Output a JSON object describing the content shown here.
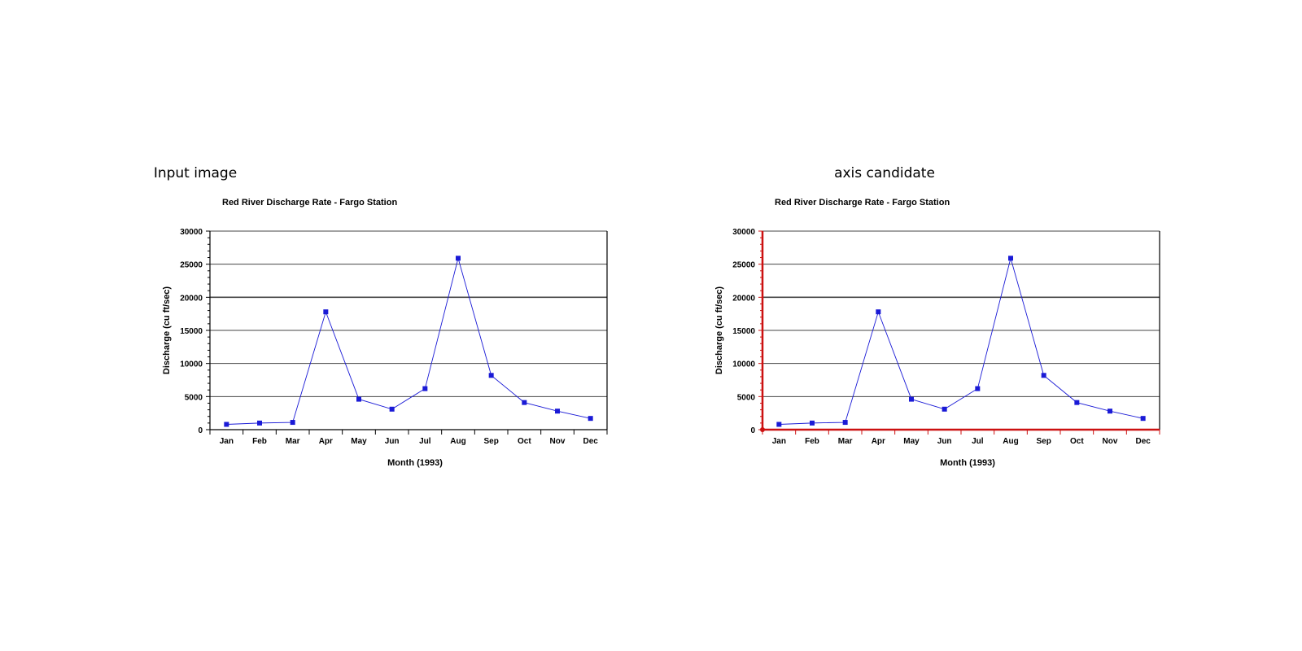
{
  "panels": {
    "left_heading": "Input image",
    "right_heading": "axis candidate"
  },
  "colors": {
    "series": "#1a1ad6",
    "grid": "#444444",
    "axis_highlight": "#cc1111"
  },
  "chart_data": [
    {
      "type": "line",
      "title": "Red River Discharge Rate - Fargo Station",
      "xlabel": "Month (1993)",
      "ylabel": "Discharge (cu ft/sec)",
      "categories": [
        "Jan",
        "Feb",
        "Mar",
        "Apr",
        "May",
        "Jun",
        "Jul",
        "Aug",
        "Sep",
        "Oct",
        "Nov",
        "Dec"
      ],
      "values": [
        800,
        1000,
        1100,
        17800,
        4600,
        3100,
        6200,
        25900,
        8200,
        4100,
        2800,
        1700
      ],
      "ylim": [
        0,
        30000
      ],
      "yticks": [
        "0",
        "5000",
        "10000",
        "15000",
        "20000",
        "25000",
        "30000"
      ],
      "grid": true,
      "legend": "none",
      "axis_highlight": false
    },
    {
      "type": "line",
      "title": "Red River Discharge Rate - Fargo Station",
      "xlabel": "Month (1993)",
      "ylabel": "Discharge (cu ft/sec)",
      "categories": [
        "Jan",
        "Feb",
        "Mar",
        "Apr",
        "May",
        "Jun",
        "Jul",
        "Aug",
        "Sep",
        "Oct",
        "Nov",
        "Dec"
      ],
      "values": [
        800,
        1000,
        1100,
        17800,
        4600,
        3100,
        6200,
        25900,
        8200,
        4100,
        2800,
        1700
      ],
      "ylim": [
        0,
        30000
      ],
      "yticks": [
        "0",
        "5000",
        "10000",
        "15000",
        "20000",
        "25000",
        "30000"
      ],
      "grid": true,
      "legend": "none",
      "axis_highlight": true
    }
  ]
}
